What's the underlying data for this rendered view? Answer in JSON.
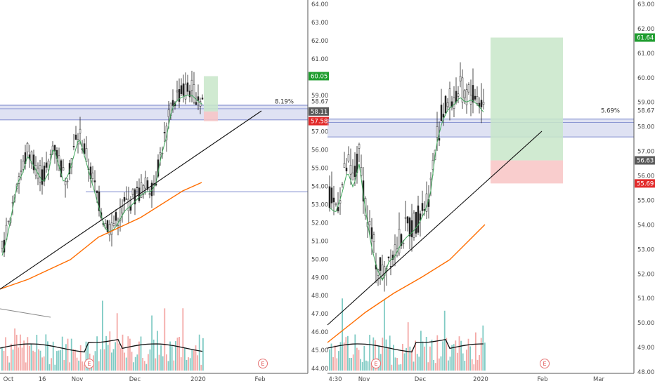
{
  "colors": {
    "up": "#26a69a",
    "down": "#ef5350",
    "vol_up": "#80cbc4",
    "vol_down": "#f4a9a7",
    "ma": "#3fa65a",
    "ema": "#ff6d00",
    "zone_fill": "#c5cae9",
    "zone_line": "#5c6bc0",
    "profit": "#c8e6c9",
    "loss": "#f8c4c4",
    "badge_green": "#1f9d2f",
    "badge_red": "#e22a2a",
    "badge_gray": "#5a5a5a"
  },
  "chart_data": [
    {
      "type": "candlestick",
      "panel": "left",
      "y_ticks": [
        "64.00",
        "63.00",
        "62.00",
        "61.00",
        "60.00",
        "59.00",
        "58.00",
        "57.00",
        "56.00",
        "55.00",
        "54.00",
        "53.00",
        "52.00",
        "51.00",
        "50.00",
        "49.00",
        "48.00",
        "47.00",
        "46.00",
        "45.00",
        "44.00"
      ],
      "ylim": [
        44.0,
        64.0
      ],
      "x_labels": [
        "Oct",
        "16",
        "Nov",
        "Dec",
        "2020",
        "Feb"
      ],
      "price_labels": [
        {
          "text": "60.05",
          "value": 60.05,
          "color": "green"
        },
        {
          "text": "58.67",
          "value": 58.67,
          "color": "none",
          "prefix": "8.19%"
        },
        {
          "text": "58.11",
          "value": 58.11,
          "color": "gray"
        },
        {
          "text": "57.58",
          "value": 57.58,
          "color": "red"
        }
      ],
      "earnings_markers": [
        "E",
        "E"
      ],
      "zone": [
        57.8,
        58.3
      ],
      "h_line": 53.7,
      "trend_line": {
        "from": [
          0,
          48.5
        ],
        "to": [
          1,
          58.1
        ]
      },
      "position": {
        "entry": 58.11,
        "target": 60.05,
        "stop": 57.58
      },
      "ohlc_trend": [
        50.5,
        51.5,
        53,
        54.5,
        55,
        56,
        55.5,
        55,
        54.5,
        55,
        56.5,
        55.5,
        54.5,
        55,
        56,
        57,
        56,
        55,
        54,
        53,
        52,
        51.8,
        52,
        52.5,
        53,
        53.2,
        53.5,
        53.8,
        54,
        54,
        54.5,
        56,
        57,
        58.5,
        59,
        59.2,
        59.3,
        59.3,
        59,
        58.8
      ],
      "volume_ma": "black"
    },
    {
      "type": "candlestick",
      "panel": "right",
      "y_ticks": [
        "63.00",
        "62.00",
        "61.00",
        "60.00",
        "59.00",
        "58.00",
        "57.00",
        "56.00",
        "55.00",
        "54.00",
        "53.00",
        "52.00",
        "51.00",
        "50.00",
        "49.00",
        "48.00"
      ],
      "ylim": [
        48.0,
        63.0
      ],
      "x_labels": [
        "4:30",
        "Nov",
        "Dec",
        "2020",
        "Feb",
        "Mar"
      ],
      "price_labels": [
        {
          "text": "61.64",
          "value": 61.64,
          "color": "green"
        },
        {
          "text": "58.67",
          "value": 58.67,
          "color": "none",
          "prefix": "5.69%"
        },
        {
          "text": "56.63",
          "value": 56.63,
          "color": "gray"
        },
        {
          "text": "55.69",
          "value": 55.69,
          "color": "red"
        }
      ],
      "earnings_markers": [
        "E",
        "E"
      ],
      "zone": [
        57.7,
        58.2
      ],
      "trend_line": {
        "from": [
          0,
          49.2
        ],
        "to": [
          1,
          58.3
        ]
      },
      "position": {
        "entry": 56.63,
        "target": 61.64,
        "stop": 55.69
      },
      "ohlc_trend": [
        55,
        54.8,
        55.5,
        56.5,
        55.8,
        56.8,
        55,
        53.5,
        52.5,
        52,
        52.8,
        53,
        53.5,
        53.8,
        54,
        54.3,
        54.8,
        55.5,
        57.5,
        58.5,
        59,
        59.2,
        59.5,
        59.3,
        59.4,
        59.2,
        58.9
      ],
      "volume_ma": "black"
    }
  ]
}
